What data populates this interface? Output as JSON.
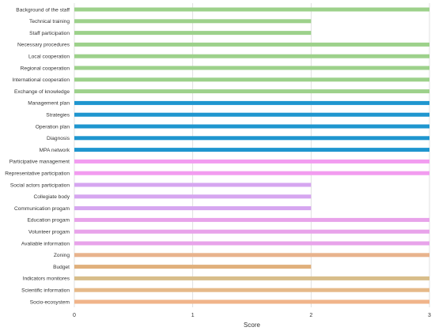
{
  "chart_data": {
    "type": "bar",
    "orientation": "horizontal",
    "categories": [
      "Background of the staff",
      "Technical training",
      "Staff participation",
      "Necessary procedures",
      "Local cooperation",
      "Regional cooperation",
      "International cooperation",
      "Exchange of knowledge",
      "Management plan",
      "Strategies",
      "Operation plan",
      "Diagnosis",
      "MPA network",
      "Participative management",
      "Representative participation",
      "Social actors participation",
      "Collegiate body",
      "Communication progam",
      "Education progam",
      "Volunteer progam",
      "Avaliable information",
      "Zoning",
      "Budget",
      "Indicators monitores",
      "Scientific information",
      "Socio-ecosystem"
    ],
    "values": [
      3,
      2,
      2,
      3,
      3,
      3,
      3,
      3,
      3,
      3,
      3,
      3,
      3,
      3,
      3,
      2,
      2,
      2,
      3,
      3,
      3,
      3,
      2,
      3,
      3,
      3
    ],
    "colors": [
      "#9dd18b",
      "#9dd18b",
      "#9dd18b",
      "#9dd18b",
      "#9dd18b",
      "#9dd18b",
      "#9dd18b",
      "#9dd18b",
      "#1f96cf",
      "#1f96cf",
      "#1f96cf",
      "#1f96cf",
      "#1f96cf",
      "#f29cf0",
      "#f29cf0",
      "#d6a6f0",
      "#d6a6f0",
      "#d6a6f0",
      "#e8a3ea",
      "#e8a3ea",
      "#e8a3ea",
      "#e8b38d",
      "#e0b07c",
      "#d8bd8a",
      "#e6b989",
      "#f0b48a"
    ],
    "xlabel": "Score",
    "ylabel": "",
    "title": "",
    "xlim": [
      0,
      3
    ],
    "xticks": [
      0,
      1,
      2,
      3
    ],
    "grid": true
  }
}
